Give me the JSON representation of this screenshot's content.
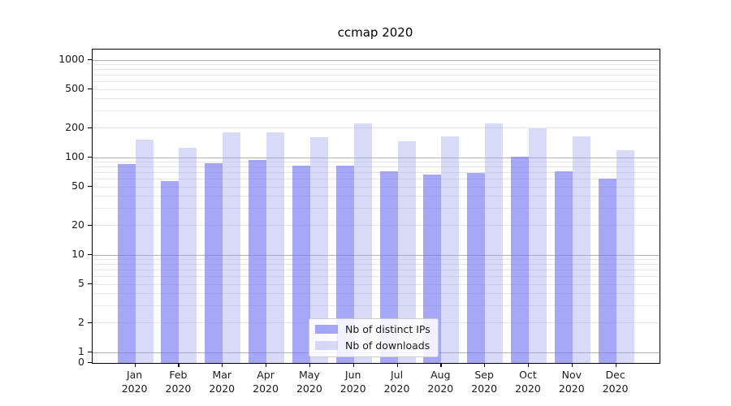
{
  "chart_data": {
    "type": "bar",
    "title": "ccmap 2020",
    "yscale": "symlog",
    "ylim": [
      0,
      1280
    ],
    "yticks": [
      0,
      1,
      2,
      5,
      10,
      20,
      50,
      100,
      200,
      500,
      1000
    ],
    "grid": {
      "horizontal": true,
      "major_lines_at": [
        1,
        10,
        100,
        1000
      ],
      "major_color": "#b3b3b3",
      "minor_color": "#e7e7e7"
    },
    "categories": [
      "Jan",
      "Feb",
      "Mar",
      "Apr",
      "May",
      "Jun",
      "Jul",
      "Aug",
      "Sep",
      "Oct",
      "Nov",
      "Dec"
    ],
    "category_year": "2020",
    "legend_position": "lower center",
    "series": [
      {
        "name": "Nb of distinct IPs",
        "color": "rgba(120,120,245,0.65)",
        "solid_color": "#a8a8f8",
        "values": [
          85,
          57,
          87,
          94,
          83,
          83,
          72,
          67,
          70,
          102,
          72,
          61
        ]
      },
      {
        "name": "Nb of downloads",
        "color": "rgba(160,160,237,0.4)",
        "solid_color": "#d9d9f8",
        "values": [
          153,
          125,
          183,
          183,
          163,
          222,
          147,
          165,
          223,
          200,
          166,
          119
        ]
      }
    ]
  }
}
